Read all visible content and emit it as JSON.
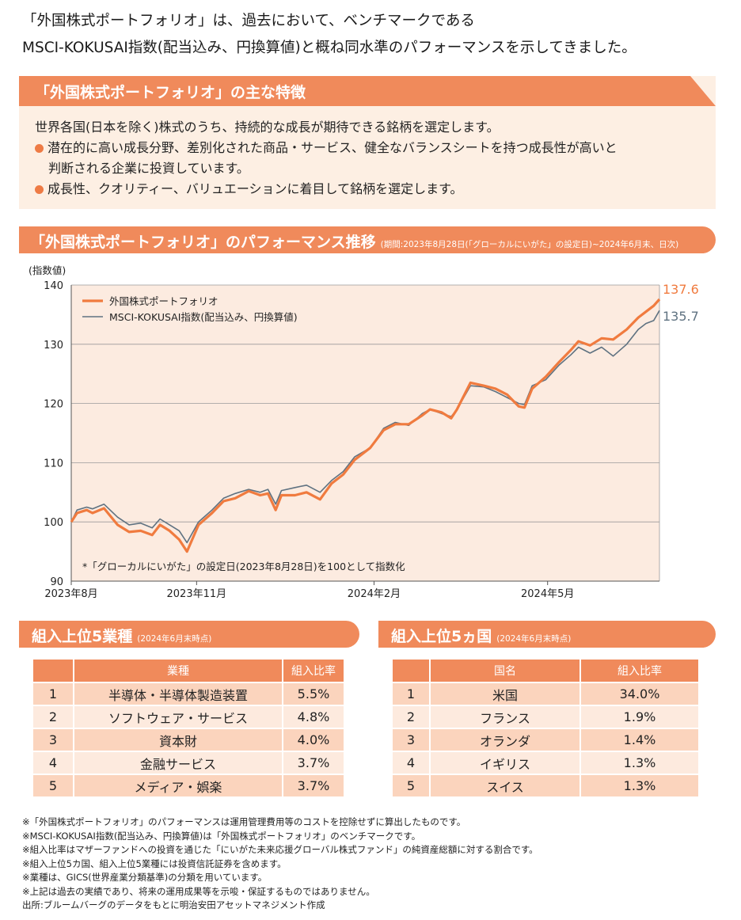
{
  "intro": {
    "line1": "「外国株式ポートフォリオ」は、過去において、ベンチマークである",
    "line2": "MSCI-KOKUSAI指数(配当込み、円換算値)と概ね同水準のパフォーマンスを示してきました。"
  },
  "features": {
    "title": "「外国株式ポートフォリオ」の主な特徴",
    "lead": "世界各国(日本を除く)株式のうち、持続的な成長が期待できる銘柄を選定します。",
    "bullet1_line1": "潜在的に高い成長分野、差別化された商品・サービス、健全なバランスシートを持つ成長性が高いと",
    "bullet1_line2": "判断される企業に投資しています。",
    "bullet2": "成長性、クオリティー、バリュエーションに着目して銘柄を選定します。"
  },
  "perf": {
    "title": "「外国株式ポートフォリオ」のパフォーマンス推移",
    "period": "(期間:2023年8月28日(「グローカルにいがた」の設定日)~2024年6月末、日次)"
  },
  "colors": {
    "accent": "#f08a5b",
    "portfolio_line": "#f07b3f",
    "index_line": "#5f7281",
    "panel_bg": "#fdefe3",
    "plot_bg": "#fcebe0"
  },
  "chart_data": {
    "type": "line",
    "ylabel": "(指数値)",
    "ylim": [
      90,
      140
    ],
    "yticks": [
      90,
      100,
      110,
      120,
      130,
      140
    ],
    "xlim": [
      "2023-08-28",
      "2024-06-28"
    ],
    "xtick_labels": [
      {
        "date": "2023-08-28",
        "label": "2023年8月"
      },
      {
        "date": "2023-11-01",
        "label": "2023年11月"
      },
      {
        "date": "2024-02-01",
        "label": "2024年2月"
      },
      {
        "date": "2024-05-01",
        "label": "2024年5月"
      }
    ],
    "grid": true,
    "legend_position": "top-left",
    "annotation": "*「グローカルにいがた」の設定日(2023年8月28日)を100として指数化",
    "series": [
      {
        "name": "外国株式ポートフォリオ",
        "end_label": "137.6",
        "points": [
          [
            "2023-08-28",
            100.0
          ],
          [
            "2023-08-31",
            101.5
          ],
          [
            "2023-09-05",
            102.0
          ],
          [
            "2023-09-08",
            101.5
          ],
          [
            "2023-09-14",
            102.3
          ],
          [
            "2023-09-21",
            99.5
          ],
          [
            "2023-09-27",
            98.3
          ],
          [
            "2023-10-03",
            98.5
          ],
          [
            "2023-10-09",
            97.8
          ],
          [
            "2023-10-13",
            99.5
          ],
          [
            "2023-10-18",
            98.5
          ],
          [
            "2023-10-23",
            97.0
          ],
          [
            "2023-10-27",
            95.0
          ],
          [
            "2023-11-02",
            99.5
          ],
          [
            "2023-11-09",
            101.5
          ],
          [
            "2023-11-15",
            103.5
          ],
          [
            "2023-11-21",
            104.0
          ],
          [
            "2023-11-28",
            105.2
          ],
          [
            "2023-12-04",
            104.5
          ],
          [
            "2023-12-08",
            104.8
          ],
          [
            "2023-12-12",
            102.0
          ],
          [
            "2023-12-15",
            104.5
          ],
          [
            "2023-12-22",
            104.5
          ],
          [
            "2023-12-28",
            105.0
          ],
          [
            "2024-01-04",
            103.8
          ],
          [
            "2024-01-10",
            106.5
          ],
          [
            "2024-01-16",
            108.0
          ],
          [
            "2024-01-22",
            110.5
          ],
          [
            "2024-01-30",
            112.5
          ],
          [
            "2024-02-06",
            115.5
          ],
          [
            "2024-02-12",
            116.5
          ],
          [
            "2024-02-19",
            116.5
          ],
          [
            "2024-02-26",
            118.0
          ],
          [
            "2024-03-01",
            119.0
          ],
          [
            "2024-03-07",
            118.5
          ],
          [
            "2024-03-12",
            117.5
          ],
          [
            "2024-03-15",
            119.0
          ],
          [
            "2024-03-22",
            123.5
          ],
          [
            "2024-03-29",
            123.0
          ],
          [
            "2024-04-04",
            122.5
          ],
          [
            "2024-04-10",
            121.5
          ],
          [
            "2024-04-16",
            119.5
          ],
          [
            "2024-04-19",
            119.3
          ],
          [
            "2024-04-23",
            122.5
          ],
          [
            "2024-04-30",
            124.5
          ],
          [
            "2024-05-07",
            127.0
          ],
          [
            "2024-05-13",
            129.0
          ],
          [
            "2024-05-17",
            130.5
          ],
          [
            "2024-05-23",
            129.8
          ],
          [
            "2024-05-29",
            131.0
          ],
          [
            "2024-06-04",
            130.8
          ],
          [
            "2024-06-11",
            132.5
          ],
          [
            "2024-06-17",
            134.5
          ],
          [
            "2024-06-21",
            135.5
          ],
          [
            "2024-06-25",
            136.5
          ],
          [
            "2024-06-28",
            137.6
          ]
        ]
      },
      {
        "name": "MSCI-KOKUSAI指数(配当込み、円換算値)",
        "end_label": "135.7",
        "points": [
          [
            "2023-08-28",
            100.0
          ],
          [
            "2023-08-31",
            102.0
          ],
          [
            "2023-09-05",
            102.5
          ],
          [
            "2023-09-08",
            102.2
          ],
          [
            "2023-09-14",
            103.0
          ],
          [
            "2023-09-21",
            100.8
          ],
          [
            "2023-09-27",
            99.5
          ],
          [
            "2023-10-03",
            99.8
          ],
          [
            "2023-10-09",
            99.0
          ],
          [
            "2023-10-13",
            100.5
          ],
          [
            "2023-10-18",
            99.5
          ],
          [
            "2023-10-23",
            98.5
          ],
          [
            "2023-10-27",
            96.5
          ],
          [
            "2023-11-02",
            100.0
          ],
          [
            "2023-11-09",
            102.0
          ],
          [
            "2023-11-15",
            104.0
          ],
          [
            "2023-11-21",
            104.8
          ],
          [
            "2023-11-28",
            105.5
          ],
          [
            "2023-12-04",
            105.0
          ],
          [
            "2023-12-08",
            105.5
          ],
          [
            "2023-12-12",
            103.0
          ],
          [
            "2023-12-15",
            105.3
          ],
          [
            "2023-12-22",
            105.8
          ],
          [
            "2023-12-28",
            106.2
          ],
          [
            "2024-01-04",
            105.0
          ],
          [
            "2024-01-10",
            107.0
          ],
          [
            "2024-01-16",
            108.5
          ],
          [
            "2024-01-22",
            111.0
          ],
          [
            "2024-01-30",
            112.5
          ],
          [
            "2024-02-06",
            115.8
          ],
          [
            "2024-02-12",
            116.8
          ],
          [
            "2024-02-19",
            116.3
          ],
          [
            "2024-02-26",
            118.3
          ],
          [
            "2024-03-01",
            119.0
          ],
          [
            "2024-03-07",
            118.3
          ],
          [
            "2024-03-12",
            117.8
          ],
          [
            "2024-03-15",
            119.0
          ],
          [
            "2024-03-22",
            123.0
          ],
          [
            "2024-03-29",
            122.8
          ],
          [
            "2024-04-04",
            122.0
          ],
          [
            "2024-04-10",
            121.0
          ],
          [
            "2024-04-16",
            120.0
          ],
          [
            "2024-04-19",
            119.8
          ],
          [
            "2024-04-23",
            123.0
          ],
          [
            "2024-04-30",
            124.0
          ],
          [
            "2024-05-07",
            126.5
          ],
          [
            "2024-05-13",
            128.2
          ],
          [
            "2024-05-17",
            129.5
          ],
          [
            "2024-05-23",
            128.5
          ],
          [
            "2024-05-29",
            129.5
          ],
          [
            "2024-06-04",
            128.0
          ],
          [
            "2024-06-11",
            130.0
          ],
          [
            "2024-06-17",
            132.5
          ],
          [
            "2024-06-21",
            133.5
          ],
          [
            "2024-06-25",
            134.0
          ],
          [
            "2024-06-28",
            135.7
          ]
        ]
      }
    ]
  },
  "sectors": {
    "title": "組入上位5業種",
    "asof": "(2024年6月末時点)",
    "headers": [
      "",
      "業種",
      "組入比率"
    ],
    "rows": [
      [
        "1",
        "半導体・半導体製造装置",
        "5.5%"
      ],
      [
        "2",
        "ソフトウェア・サービス",
        "4.8%"
      ],
      [
        "3",
        "資本財",
        "4.0%"
      ],
      [
        "4",
        "金融サービス",
        "3.7%"
      ],
      [
        "5",
        "メディア・娯楽",
        "3.7%"
      ]
    ]
  },
  "countries": {
    "title": "組入上位5ヵ国",
    "asof": "(2024年6月末時点)",
    "headers": [
      "",
      "国名",
      "組入比率"
    ],
    "rows": [
      [
        "1",
        "米国",
        "34.0%"
      ],
      [
        "2",
        "フランス",
        "1.9%"
      ],
      [
        "3",
        "オランダ",
        "1.4%"
      ],
      [
        "4",
        "イギリス",
        "1.3%"
      ],
      [
        "5",
        "スイス",
        "1.3%"
      ]
    ]
  },
  "notes": [
    "※「外国株式ポートフォリオ」のパフォーマンスは運用管理費用等のコストを控除せずに算出したものです。",
    "※MSCI-KOKUSAI指数(配当込み、円換算値)は「外国株式ポートフォリオ」のベンチマークです。",
    "※組入比率はマザーファンドへの投資を通じた「にいがた未来応援グローバル株式ファンド」の純資産総額に対する割合です。",
    "※組入上位5カ国、組入上位5業種には投資信託証券を含めます。",
    "※業種は、GICS(世界産業分類基準)の分類を用いています。",
    "※上記は過去の実績であり、将来の運用成果等を示唆・保証するものではありません。",
    "出所:ブルームバーグのデータをもとに明治安田アセットマネジメント作成"
  ]
}
